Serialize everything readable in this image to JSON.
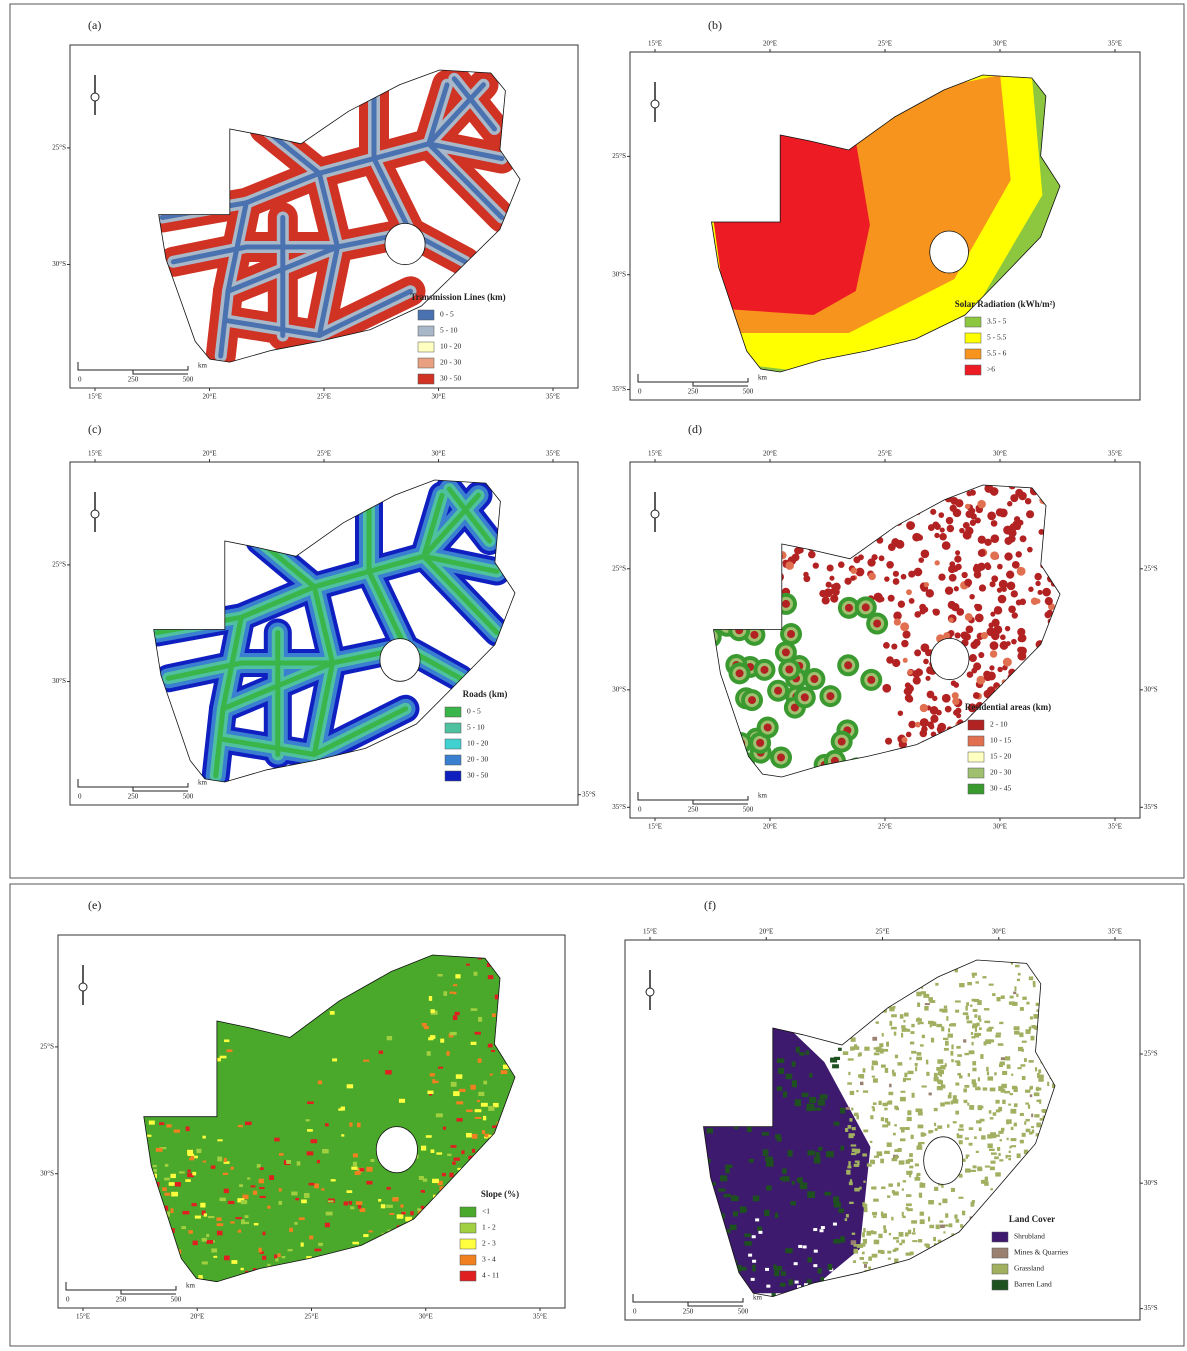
{
  "panels": [
    {
      "label": "(a)",
      "type": "transmission",
      "legend_title": "Transmission Lines (km)",
      "legend": [
        {
          "label": "0 - 5",
          "color": "#4a72b0"
        },
        {
          "label": "5 - 10",
          "color": "#a9b8c8"
        },
        {
          "label": "10 - 20",
          "color": "#ffffc0"
        },
        {
          "label": "20 - 30",
          "color": "#e8a080"
        },
        {
          "label": "30 - 50",
          "color": "#d03224"
        }
      ],
      "ticks": {
        "bottom": [
          "15°E",
          "20°E",
          "25°E",
          "30°E",
          "35°E"
        ],
        "left": [
          "25°S",
          "30°S"
        ]
      },
      "scale_bar": [
        "0",
        "250",
        "500",
        "km"
      ]
    },
    {
      "label": "(b)",
      "type": "solar",
      "legend_title": "Solar Radiation (kWh/m²)",
      "legend": [
        {
          "label": "3.5 - 5",
          "color": "#8dc63f"
        },
        {
          "label": "5 - 5.5",
          "color": "#ffff00"
        },
        {
          "label": "5.5 - 6",
          "color": "#f7941d"
        },
        {
          "label": ">6",
          "color": "#ed1c24"
        }
      ],
      "ticks": {
        "top": [
          "15°E",
          "20°E",
          "25°E",
          "30°E",
          "35°E"
        ],
        "left": [
          "25°S",
          "30°S",
          "35°S"
        ]
      },
      "scale_bar": [
        "0",
        "250",
        "500",
        "km"
      ]
    },
    {
      "label": "(c)",
      "type": "roads",
      "legend_title": "Roads (km)",
      "legend": [
        {
          "label": "0 - 5",
          "color": "#39b54a"
        },
        {
          "label": "5 - 10",
          "color": "#4fc1a0"
        },
        {
          "label": "10 - 20",
          "color": "#40d0d0"
        },
        {
          "label": "20 - 30",
          "color": "#3a7fd0"
        },
        {
          "label": "30 - 50",
          "color": "#1020c0"
        }
      ],
      "ticks": {
        "top": [
          "15°E",
          "20°E",
          "25°E",
          "30°E",
          "35°E"
        ],
        "left": [
          "25°S",
          "30°S"
        ],
        "right": [
          "35°S"
        ]
      },
      "scale_bar": [
        "0",
        "250",
        "500",
        "km"
      ]
    },
    {
      "label": "(d)",
      "type": "residential",
      "legend_title": "Residential areas (km)",
      "legend": [
        {
          "label": "2 - 10",
          "color": "#b22222"
        },
        {
          "label": "10 - 15",
          "color": "#e07050"
        },
        {
          "label": "15 - 20",
          "color": "#ffffc0"
        },
        {
          "label": "20 - 30",
          "color": "#a0c070"
        },
        {
          "label": "30 - 45",
          "color": "#3a9a30"
        }
      ],
      "ticks": {
        "top": [
          "15°E",
          "20°E",
          "25°E",
          "30°E",
          "35°E"
        ],
        "bottom": [
          "15°E",
          "20°E",
          "25°E",
          "30°E",
          "35°E"
        ],
        "left": [
          "25°S",
          "30°S",
          "35°S"
        ],
        "right": [
          "25°S",
          "30°S",
          "35°S"
        ]
      },
      "scale_bar": [
        "0",
        "250",
        "500",
        "km"
      ]
    },
    {
      "label": "(e)",
      "type": "slope",
      "legend_title": "Slope (%)",
      "legend": [
        {
          "label": "<1",
          "color": "#4aa82a"
        },
        {
          "label": "1 - 2",
          "color": "#a0d040"
        },
        {
          "label": "2 - 3",
          "color": "#ffff40"
        },
        {
          "label": "3 - 4",
          "color": "#f08020"
        },
        {
          "label": "4 - 11",
          "color": "#e02020"
        }
      ],
      "ticks": {
        "bottom": [
          "15°E",
          "20°E",
          "25°E",
          "30°E",
          "35°E"
        ],
        "left": [
          "25°S",
          "30°S"
        ]
      },
      "scale_bar": [
        "0",
        "250",
        "500",
        "km"
      ]
    },
    {
      "label": "(f)",
      "type": "landcover",
      "legend_title": "Land Cover",
      "legend": [
        {
          "label": "Shrubland",
          "color": "#3d1a6e"
        },
        {
          "label": "Mines & Quarries",
          "color": "#9a8070"
        },
        {
          "label": "Grassland",
          "color": "#a0b060"
        },
        {
          "label": "Barren Land",
          "color": "#1e5020"
        }
      ],
      "ticks": {
        "top": [
          "15°E",
          "20°E",
          "25°E",
          "30°E",
          "35°E"
        ],
        "right": [
          "25°S",
          "30°S",
          "35°S"
        ]
      },
      "scale_bar": [
        "0",
        "250",
        "500",
        "km"
      ]
    }
  ]
}
